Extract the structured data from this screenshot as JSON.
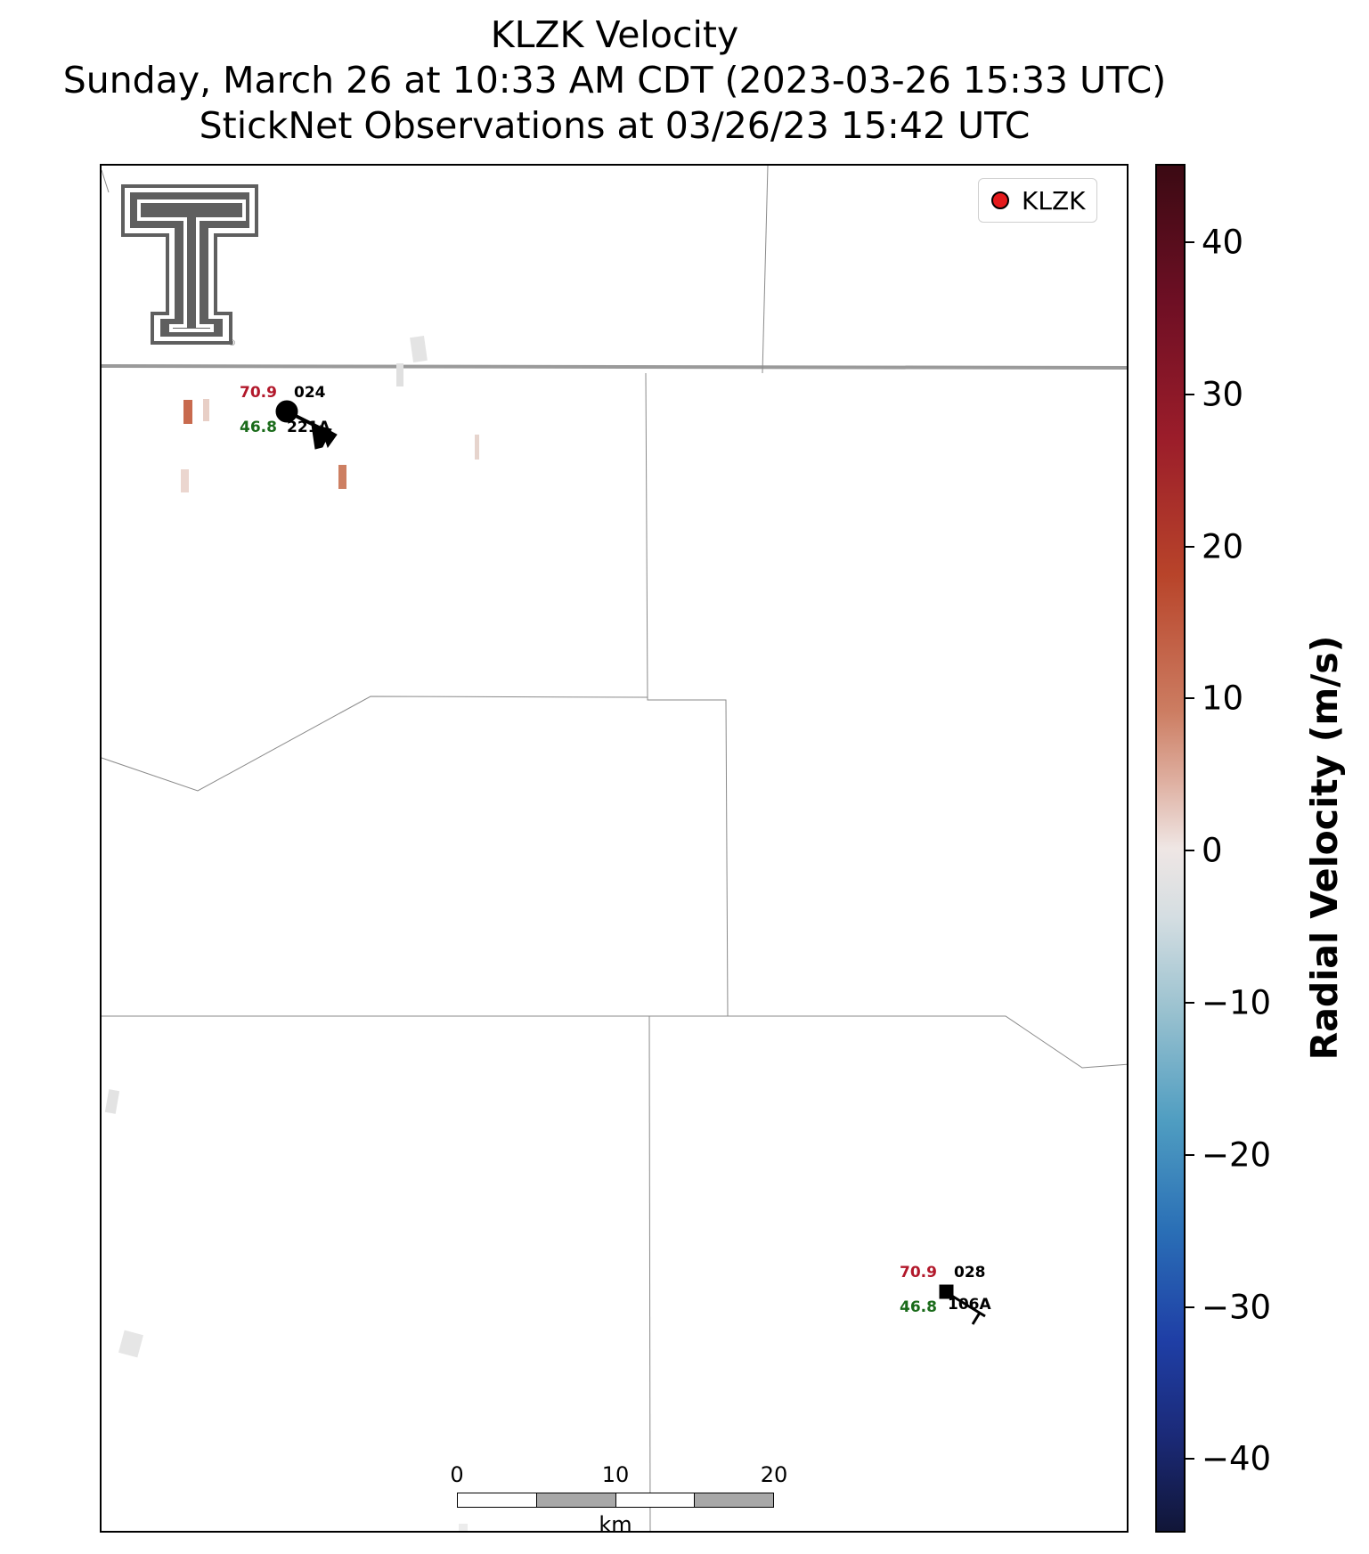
{
  "title": {
    "line1": "KLZK Velocity",
    "line2": "Sunday, March 26 at 10:33 AM CDT (2023-03-26 15:33 UTC)",
    "line3": "StickNet Observations at 03/26/23 15:42 UTC"
  },
  "legend": {
    "label": "KLZK",
    "marker_color": "#e41a1c"
  },
  "stations": [
    {
      "id": "024",
      "temperature": "70.9",
      "dewpoint": "46.8",
      "code": "221A",
      "marker": "circle"
    },
    {
      "id": "028",
      "temperature": "70.9",
      "dewpoint": "46.8",
      "code": "106A",
      "marker": "square"
    }
  ],
  "scale_bar": {
    "ticks": [
      "0",
      "10",
      "20"
    ],
    "unit": "km"
  },
  "colorbar": {
    "title": "Radial Velocity (m/s)",
    "ticks": [
      "40",
      "30",
      "20",
      "10",
      "0",
      "−10",
      "−20",
      "−30",
      "−40"
    ],
    "range": [
      -45,
      45
    ],
    "colormap": [
      "#111638",
      "#1f3fa6",
      "#4f9dc1",
      "#efe6e4",
      "#cc7d62",
      "#9b1d2a",
      "#3b0a13"
    ]
  },
  "logo": {
    "name": "texas-tech-double-t-logo",
    "color": "#5f5f5f"
  }
}
